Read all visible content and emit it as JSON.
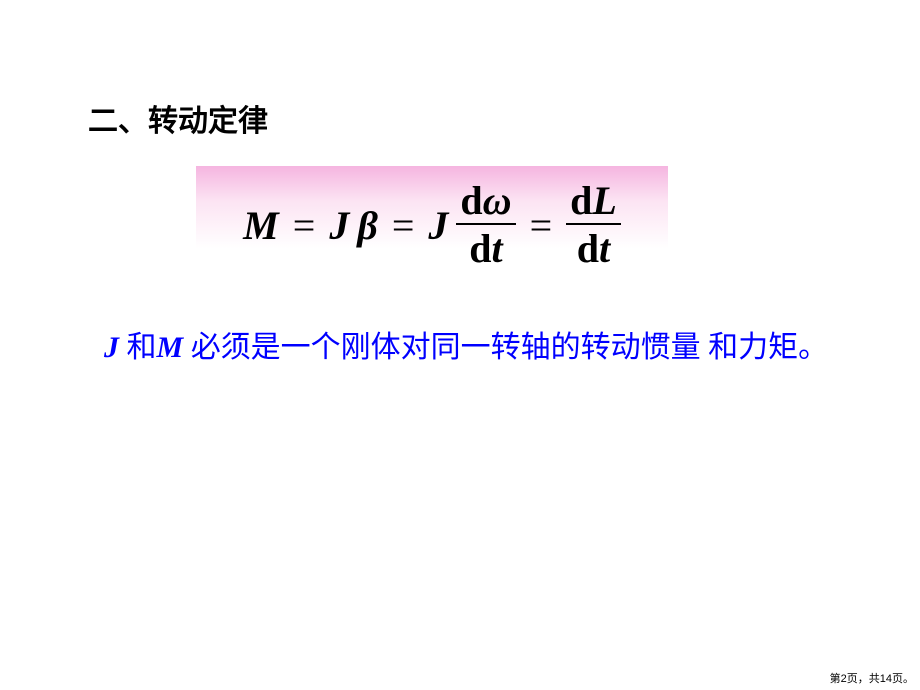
{
  "heading": "二、转动定律",
  "equation": {
    "M": "M",
    "eq1": "=",
    "J1": "J",
    "beta": "β",
    "eq2": "=",
    "J2": "J",
    "frac1_top_d": "d",
    "frac1_top_omega": "ω",
    "frac1_bot_d": "d",
    "frac1_bot_t": "t",
    "eq3": "=",
    "frac2_top_d": "d",
    "frac2_top_L": "L",
    "frac2_bot_d": "d",
    "frac2_bot_t": "t"
  },
  "note": {
    "J": "J",
    "text1": " 和",
    "M": "M",
    "text2": " 必须是一个刚体对同一转轴的转动惯量 和力矩。"
  },
  "footer": {
    "prefix": "第",
    "current": "2",
    "mid": "页，共",
    "total": "14",
    "suffix": "页。"
  },
  "style": {
    "background_color": "#ffffff",
    "heading_color": "#000000",
    "heading_fontsize": 30,
    "note_color": "#0000ff",
    "note_fontsize": 30,
    "equation_fontsize": 40,
    "equation_color": "#000000",
    "gradient_top": "#f5b5e0",
    "gradient_bottom": "#ffffff",
    "footer_fontsize": 11
  }
}
